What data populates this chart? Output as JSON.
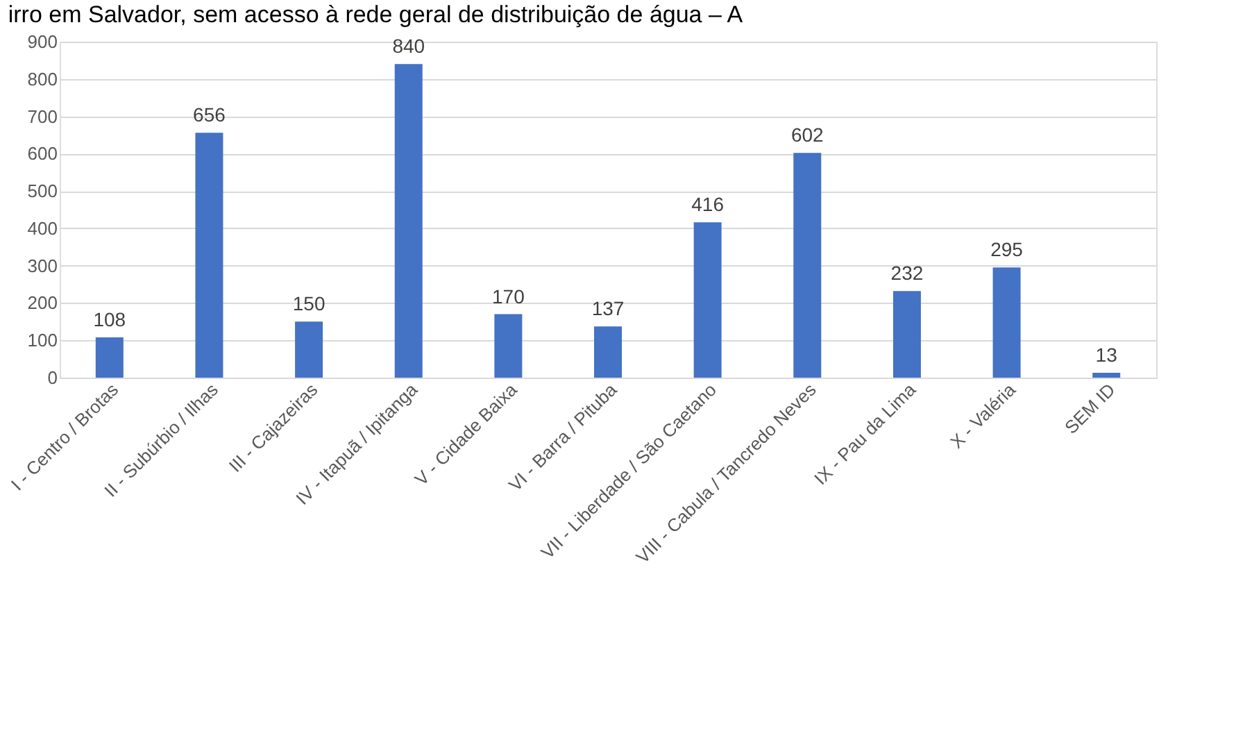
{
  "chart_data": {
    "type": "bar",
    "title": "irro em Salvador, sem acesso à rede geral de distribuição de água – A",
    "categories": [
      "I - Centro / Brotas",
      "II - Subúrbio / Ilhas",
      "III - Cajazeiras",
      "IV - Itapuã / Ipitanga",
      "V - Cidade Baixa",
      "VI - Barra / Pituba",
      "VII - Liberdade / São Caetano",
      "VIII - Cabula / Tancredo Neves",
      "IX - Pau da Lima",
      "X - Valéria",
      "SEM ID"
    ],
    "values": [
      108,
      656,
      150,
      840,
      170,
      137,
      416,
      602,
      232,
      295,
      13
    ],
    "color": "#4472c4",
    "ylim": [
      0,
      900
    ],
    "yticks": [
      0,
      100,
      200,
      300,
      400,
      500,
      600,
      700,
      800,
      900
    ],
    "grid": "y",
    "data_labels": true
  }
}
